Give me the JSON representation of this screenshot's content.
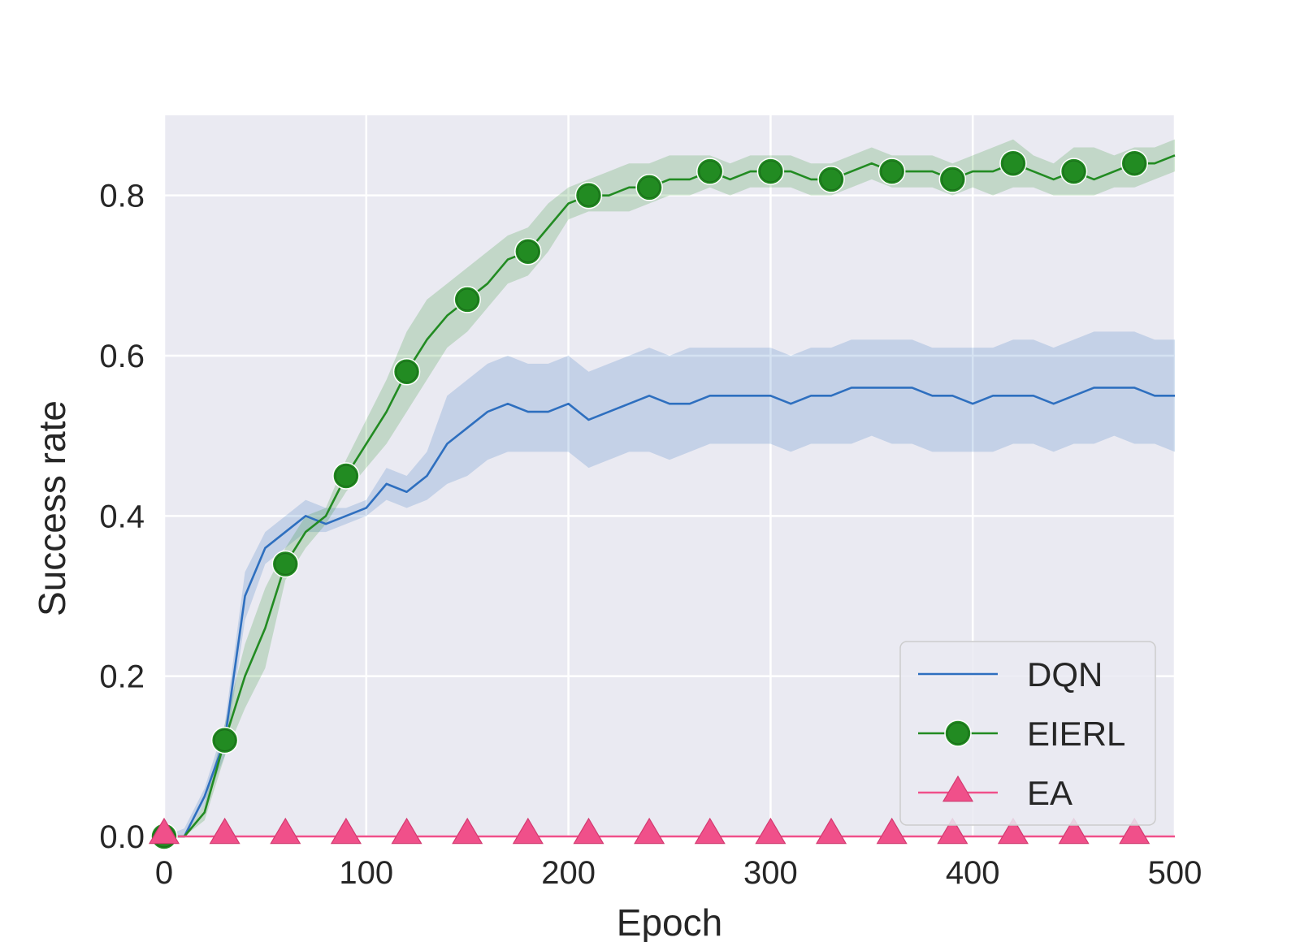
{
  "chart_data": {
    "type": "line",
    "title": "",
    "xlabel": "Epoch",
    "ylabel": "Success rate",
    "xlim": [
      0,
      500
    ],
    "ylim": [
      0,
      0.9
    ],
    "xticks": [
      0,
      100,
      200,
      300,
      400,
      500
    ],
    "xtick_labels": [
      "0",
      "100",
      "200",
      "300",
      "400",
      "500"
    ],
    "yticks": [
      0.0,
      0.2,
      0.4,
      0.6,
      0.8
    ],
    "ytick_labels": [
      "0.0",
      "0.2",
      "0.4",
      "0.6",
      "0.8"
    ],
    "grid": true,
    "legend_position": "bottom-right",
    "background_color": "#eaeaf2",
    "series": [
      {
        "name": "DQN",
        "color": "#2e6fbf",
        "marker": "none",
        "x": [
          0,
          10,
          20,
          30,
          40,
          50,
          60,
          70,
          80,
          90,
          100,
          110,
          120,
          130,
          140,
          150,
          160,
          170,
          180,
          190,
          200,
          210,
          220,
          230,
          240,
          250,
          260,
          270,
          280,
          290,
          300,
          310,
          320,
          330,
          340,
          350,
          360,
          370,
          380,
          390,
          400,
          410,
          420,
          430,
          440,
          450,
          460,
          470,
          480,
          490,
          500
        ],
        "y": [
          0.0,
          0.0,
          0.05,
          0.12,
          0.3,
          0.36,
          0.38,
          0.4,
          0.39,
          0.4,
          0.41,
          0.44,
          0.43,
          0.45,
          0.49,
          0.51,
          0.53,
          0.54,
          0.53,
          0.53,
          0.54,
          0.52,
          0.53,
          0.54,
          0.55,
          0.54,
          0.54,
          0.55,
          0.55,
          0.55,
          0.55,
          0.54,
          0.55,
          0.55,
          0.56,
          0.56,
          0.56,
          0.56,
          0.55,
          0.55,
          0.54,
          0.55,
          0.55,
          0.55,
          0.54,
          0.55,
          0.56,
          0.56,
          0.56,
          0.55,
          0.55
        ],
        "lower": [
          0.0,
          0.0,
          0.04,
          0.1,
          0.27,
          0.34,
          0.36,
          0.38,
          0.38,
          0.39,
          0.4,
          0.42,
          0.41,
          0.42,
          0.44,
          0.45,
          0.47,
          0.48,
          0.48,
          0.48,
          0.48,
          0.46,
          0.47,
          0.48,
          0.48,
          0.47,
          0.48,
          0.49,
          0.49,
          0.49,
          0.49,
          0.48,
          0.49,
          0.49,
          0.49,
          0.5,
          0.49,
          0.49,
          0.48,
          0.48,
          0.48,
          0.48,
          0.49,
          0.49,
          0.48,
          0.49,
          0.49,
          0.5,
          0.49,
          0.49,
          0.48
        ],
        "upper": [
          0.0,
          0.01,
          0.06,
          0.14,
          0.33,
          0.38,
          0.4,
          0.42,
          0.41,
          0.41,
          0.42,
          0.46,
          0.45,
          0.48,
          0.55,
          0.57,
          0.59,
          0.6,
          0.59,
          0.59,
          0.6,
          0.58,
          0.59,
          0.6,
          0.61,
          0.6,
          0.61,
          0.61,
          0.61,
          0.61,
          0.61,
          0.6,
          0.61,
          0.61,
          0.62,
          0.62,
          0.62,
          0.62,
          0.61,
          0.61,
          0.61,
          0.61,
          0.62,
          0.62,
          0.61,
          0.62,
          0.63,
          0.63,
          0.63,
          0.62,
          0.62
        ]
      },
      {
        "name": "EIERL",
        "color": "#228b22",
        "marker": "circle",
        "x": [
          0,
          10,
          20,
          30,
          40,
          50,
          60,
          70,
          80,
          90,
          100,
          110,
          120,
          130,
          140,
          150,
          160,
          170,
          180,
          190,
          200,
          210,
          220,
          230,
          240,
          250,
          260,
          270,
          280,
          290,
          300,
          310,
          320,
          330,
          340,
          350,
          360,
          370,
          380,
          390,
          400,
          410,
          420,
          430,
          440,
          450,
          460,
          470,
          480,
          490,
          500
        ],
        "y": [
          0.0,
          0.0,
          0.03,
          0.12,
          0.2,
          0.26,
          0.34,
          0.38,
          0.4,
          0.45,
          0.49,
          0.53,
          0.58,
          0.62,
          0.65,
          0.67,
          0.69,
          0.72,
          0.73,
          0.76,
          0.79,
          0.8,
          0.8,
          0.81,
          0.81,
          0.82,
          0.82,
          0.83,
          0.82,
          0.83,
          0.83,
          0.83,
          0.82,
          0.82,
          0.83,
          0.84,
          0.83,
          0.83,
          0.83,
          0.82,
          0.83,
          0.83,
          0.84,
          0.83,
          0.82,
          0.83,
          0.82,
          0.83,
          0.84,
          0.84,
          0.85
        ],
        "lower": [
          0.0,
          0.0,
          0.02,
          0.1,
          0.16,
          0.21,
          0.32,
          0.36,
          0.39,
          0.43,
          0.46,
          0.49,
          0.53,
          0.57,
          0.61,
          0.63,
          0.66,
          0.69,
          0.7,
          0.73,
          0.77,
          0.78,
          0.78,
          0.78,
          0.79,
          0.8,
          0.8,
          0.81,
          0.8,
          0.81,
          0.81,
          0.81,
          0.8,
          0.8,
          0.81,
          0.82,
          0.81,
          0.81,
          0.81,
          0.8,
          0.81,
          0.8,
          0.81,
          0.81,
          0.8,
          0.8,
          0.8,
          0.81,
          0.81,
          0.82,
          0.83
        ],
        "upper": [
          0.0,
          0.0,
          0.04,
          0.14,
          0.24,
          0.31,
          0.36,
          0.4,
          0.41,
          0.47,
          0.52,
          0.57,
          0.63,
          0.67,
          0.69,
          0.71,
          0.73,
          0.75,
          0.76,
          0.79,
          0.81,
          0.82,
          0.83,
          0.84,
          0.84,
          0.85,
          0.85,
          0.85,
          0.84,
          0.85,
          0.85,
          0.85,
          0.84,
          0.84,
          0.85,
          0.86,
          0.85,
          0.85,
          0.85,
          0.84,
          0.85,
          0.86,
          0.87,
          0.85,
          0.84,
          0.86,
          0.86,
          0.85,
          0.86,
          0.86,
          0.87
        ]
      },
      {
        "name": "EA",
        "color": "#f0508a",
        "marker": "triangle",
        "x": [
          0,
          500
        ],
        "y": [
          0.0,
          0.0
        ]
      }
    ],
    "markers": {
      "EIERL": {
        "x": [
          0,
          30,
          60,
          90,
          120,
          150,
          180,
          210,
          240,
          270,
          300,
          330,
          360,
          390,
          420,
          450,
          480
        ],
        "y": [
          0.0,
          0.12,
          0.34,
          0.45,
          0.58,
          0.67,
          0.73,
          0.8,
          0.81,
          0.83,
          0.83,
          0.82,
          0.83,
          0.82,
          0.84,
          0.83,
          0.84
        ]
      },
      "EA": {
        "x": [
          0,
          30,
          60,
          90,
          120,
          150,
          180,
          210,
          240,
          270,
          300,
          330,
          360,
          390,
          420,
          450,
          480
        ],
        "y": [
          0.0,
          0.0,
          0.0,
          0.0,
          0.0,
          0.0,
          0.0,
          0.0,
          0.0,
          0.0,
          0.0,
          0.0,
          0.0,
          0.0,
          0.0,
          0.0,
          0.0
        ]
      }
    }
  }
}
